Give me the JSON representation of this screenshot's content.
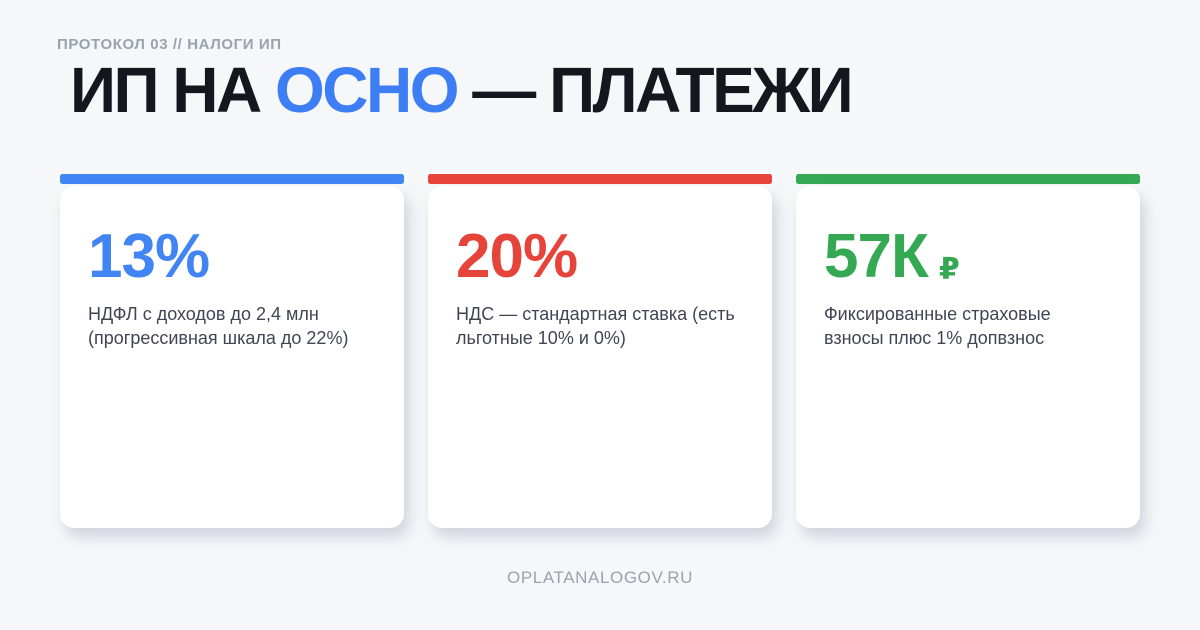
{
  "page": {
    "background": "#f6f7f9",
    "eyebrow": "ПРОТОКОЛ 03 // НАЛОГИ ИП",
    "footer": "OPLATANALOGOV.RU"
  },
  "title": {
    "prefix": "ИП НА ",
    "highlight": "ОСНО",
    "suffix": " — ПЛАТЕЖИ",
    "highlight_color": "#3d7ef4",
    "text_color": "#14171d"
  },
  "cards": [
    {
      "value": "13%",
      "currency": "",
      "description": "НДФЛ с доходов до 2,4 млн (прогрессивная шкала до 22%)",
      "accent": "#4184f4"
    },
    {
      "value": "20%",
      "currency": "",
      "description": "НДС — стандартная ставка (есть льготные 10% и 0%)",
      "accent": "#e6443b"
    },
    {
      "value": "57К",
      "currency": "₽",
      "description": "Фиксированные страховые взносы плюс 1% допвзнос",
      "accent": "#34a853"
    }
  ]
}
